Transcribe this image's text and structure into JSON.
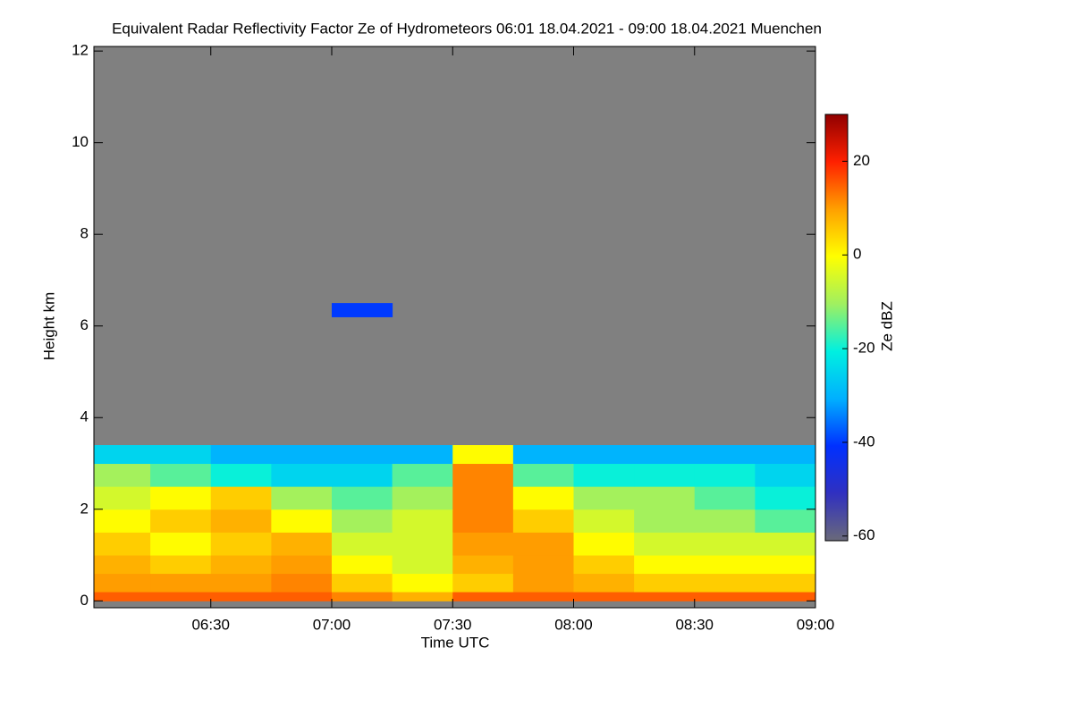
{
  "chart_data": {
    "type": "heatmap",
    "title": "Equivalent Radar Reflectivity Factor Ze of Hydrometeors   06:01 18.04.2021 - 09:00 18.04.2021 Muenchen",
    "xlabel": "Time UTC",
    "ylabel": "Height km",
    "colorbar_label": "Ze dBZ",
    "x": [
      "06:01",
      "06:15",
      "06:30",
      "06:45",
      "07:00",
      "07:15",
      "07:30",
      "07:45",
      "08:00",
      "08:15",
      "08:30",
      "08:45",
      "09:00"
    ],
    "y": [
      0,
      0.2,
      0.6,
      1.0,
      1.5,
      2.0,
      2.5,
      3.0,
      3.4,
      6.2,
      6.5
    ],
    "z": [
      [
        15,
        15,
        15,
        15,
        12,
        8,
        15,
        15,
        15,
        15,
        15,
        15
      ],
      [
        10,
        10,
        10,
        12,
        5,
        0,
        5,
        10,
        8,
        5,
        5,
        5
      ],
      [
        8,
        5,
        8,
        10,
        0,
        -5,
        8,
        10,
        5,
        0,
        0,
        0
      ],
      [
        5,
        0,
        5,
        8,
        -5,
        -5,
        10,
        10,
        0,
        -5,
        -5,
        -5
      ],
      [
        0,
        5,
        8,
        0,
        -10,
        -5,
        12,
        5,
        -5,
        -10,
        -10,
        -15
      ],
      [
        -5,
        0,
        5,
        -10,
        -15,
        -10,
        12,
        0,
        -10,
        -10,
        -15,
        -20
      ],
      [
        -10,
        -15,
        -20,
        -25,
        -25,
        -15,
        12,
        -15,
        -20,
        -20,
        -20,
        -25
      ],
      [
        -25,
        -25,
        -30,
        -30,
        -30,
        -30,
        0,
        -30,
        -30,
        -30,
        -30,
        -30
      ],
      [
        null,
        null,
        null,
        null,
        null,
        null,
        null,
        null,
        null,
        null,
        null,
        null
      ],
      [
        null,
        null,
        null,
        null,
        -40,
        null,
        null,
        null,
        null,
        null,
        null,
        null
      ]
    ],
    "xlim": [
      "06:01",
      "09:00"
    ],
    "xticks": [
      "06:30",
      "07:00",
      "07:30",
      "08:00",
      "08:30",
      "09:00"
    ],
    "ylim": [
      -0.15,
      12.1
    ],
    "yticks": [
      0,
      2,
      4,
      6,
      8,
      10,
      12
    ],
    "zlim": [
      -61,
      30
    ],
    "zticks": [
      -60,
      -40,
      -20,
      0,
      20
    ],
    "na_color": "#808080",
    "colormap": [
      "#6a6a7a",
      "#3030c0",
      "#0030ff",
      "#00b0ff",
      "#00f0e0",
      "#a0f060",
      "#ffff00",
      "#ffa000",
      "#ff2000",
      "#900000"
    ]
  }
}
